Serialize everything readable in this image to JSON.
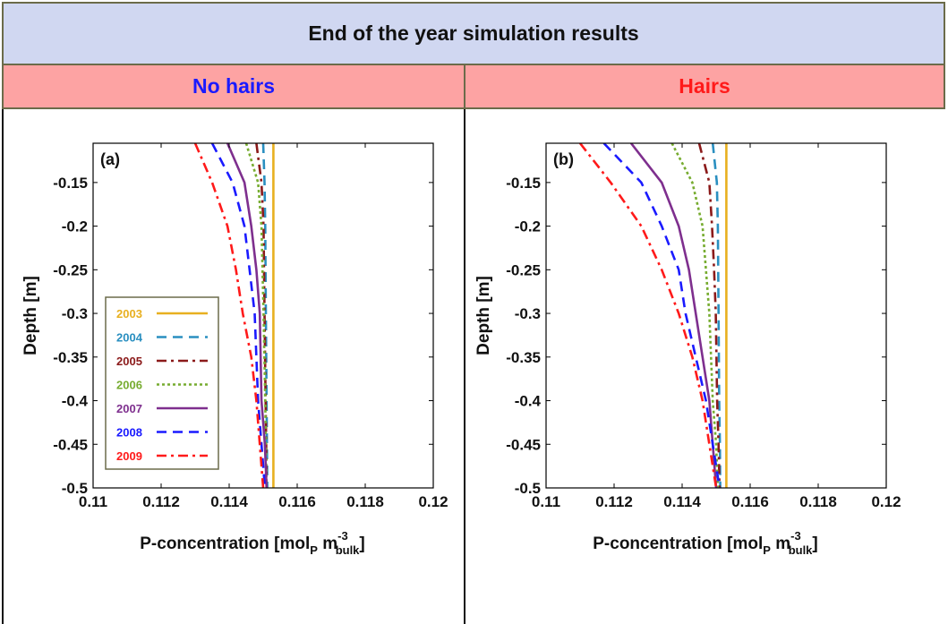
{
  "banner": {
    "title": "End of the year simulation results"
  },
  "headers": {
    "left": "No hairs",
    "right": "Hairs",
    "left_color": "#1a1aff",
    "right_color": "#ff1a1a"
  },
  "legend": {
    "entries": [
      {
        "year": "2003",
        "color": "#e8b020",
        "dash": "solid"
      },
      {
        "year": "2004",
        "color": "#2a8fc0",
        "dash": "dashed"
      },
      {
        "year": "2005",
        "color": "#8b1a1a",
        "dash": "dashdot"
      },
      {
        "year": "2006",
        "color": "#77ac30",
        "dash": "dotted"
      },
      {
        "year": "2007",
        "color": "#7e2f8e",
        "dash": "solid"
      },
      {
        "year": "2008",
        "color": "#1a1aff",
        "dash": "dashed"
      },
      {
        "year": "2009",
        "color": "#ff1a1a",
        "dash": "dashdot"
      }
    ]
  },
  "chart_data": [
    {
      "type": "line",
      "panel_label": "(a)",
      "xlabel": "P-concentration [mol_P m_bulk^-3]",
      "xlabel_parts": {
        "main": "P-concentration [mol",
        "sub1": "P",
        "mid": " m",
        "sup": "-3",
        "sub2": "bulk",
        "end": "]"
      },
      "ylabel": "Depth [m]",
      "xlim": [
        0.11,
        0.12
      ],
      "ylim": [
        -0.5,
        -0.105
      ],
      "x_ticks": [
        "0.11",
        "0.112",
        "0.114",
        "0.116",
        "0.118",
        "0.12"
      ],
      "y_ticks": [
        "-0.15",
        "-0.2",
        "-0.25",
        "-0.3",
        "-0.35",
        "-0.4",
        "-0.45",
        "-0.5"
      ],
      "grid": false,
      "legend_position": "left",
      "series": [
        {
          "name": "2003",
          "x": [
            0.1153,
            0.1153
          ],
          "y": [
            -0.105,
            -0.5
          ]
        },
        {
          "name": "2004",
          "x": [
            0.115,
            0.11504,
            0.11506,
            0.11508,
            0.1151,
            0.11511,
            0.11512
          ],
          "y": [
            -0.105,
            -0.15,
            -0.2,
            -0.3,
            -0.4,
            -0.45,
            -0.5
          ]
        },
        {
          "name": "2005",
          "x": [
            0.1148,
            0.11495,
            0.11501,
            0.11504,
            0.11507,
            0.11509,
            0.1151
          ],
          "y": [
            -0.105,
            -0.15,
            -0.2,
            -0.3,
            -0.4,
            -0.45,
            -0.5
          ]
        },
        {
          "name": "2006",
          "x": [
            0.1145,
            0.11485,
            0.11495,
            0.11501,
            0.11506,
            0.11508,
            0.1151
          ],
          "y": [
            -0.105,
            -0.15,
            -0.2,
            -0.3,
            -0.4,
            -0.45,
            -0.5
          ]
        },
        {
          "name": "2007",
          "x": [
            0.11395,
            0.11445,
            0.11465,
            0.1148,
            0.1149,
            0.11495,
            0.11505,
            0.1151
          ],
          "y": [
            -0.105,
            -0.15,
            -0.2,
            -0.25,
            -0.3,
            -0.4,
            -0.45,
            -0.5
          ]
        },
        {
          "name": "2008",
          "x": [
            0.1135,
            0.1141,
            0.11445,
            0.1146,
            0.11475,
            0.11485,
            0.11495,
            0.11505
          ],
          "y": [
            -0.105,
            -0.15,
            -0.2,
            -0.25,
            -0.3,
            -0.4,
            -0.45,
            -0.5
          ]
        },
        {
          "name": "2009",
          "x": [
            0.113,
            0.1135,
            0.11395,
            0.1142,
            0.1144,
            0.11465,
            0.1148,
            0.1149,
            0.115
          ],
          "y": [
            -0.105,
            -0.15,
            -0.2,
            -0.25,
            -0.3,
            -0.35,
            -0.4,
            -0.45,
            -0.5
          ]
        }
      ]
    },
    {
      "type": "line",
      "panel_label": "(b)",
      "xlabel": "P-concentration [mol_P m_bulk^-3]",
      "xlabel_parts": {
        "main": "P-concentration [mol",
        "sub1": "P",
        "mid": " m",
        "sup": "-3",
        "sub2": "bulk",
        "end": "]"
      },
      "ylabel": "Depth [m]",
      "xlim": [
        0.11,
        0.12
      ],
      "ylim": [
        -0.5,
        -0.105
      ],
      "x_ticks": [
        "0.11",
        "0.112",
        "0.114",
        "0.116",
        "0.118",
        "0.12"
      ],
      "y_ticks": [
        "-0.15",
        "-0.2",
        "-0.25",
        "-0.3",
        "-0.35",
        "-0.4",
        "-0.45",
        "-0.5"
      ],
      "grid": false,
      "series": [
        {
          "name": "2003",
          "x": [
            0.1153,
            0.1153
          ],
          "y": [
            -0.105,
            -0.5
          ]
        },
        {
          "name": "2004",
          "x": [
            0.1149,
            0.11502,
            0.11505,
            0.11507,
            0.11509,
            0.11511,
            0.11512
          ],
          "y": [
            -0.105,
            -0.15,
            -0.2,
            -0.3,
            -0.4,
            -0.45,
            -0.5
          ]
        },
        {
          "name": "2005",
          "x": [
            0.1145,
            0.1148,
            0.11488,
            0.11494,
            0.11499,
            0.11503,
            0.11507,
            0.1151
          ],
          "y": [
            -0.105,
            -0.15,
            -0.2,
            -0.25,
            -0.3,
            -0.4,
            -0.45,
            -0.5
          ]
        },
        {
          "name": "2006",
          "x": [
            0.1137,
            0.1143,
            0.1146,
            0.1147,
            0.1148,
            0.1149,
            0.115,
            0.11505
          ],
          "y": [
            -0.105,
            -0.15,
            -0.2,
            -0.25,
            -0.3,
            -0.4,
            -0.45,
            -0.5
          ]
        },
        {
          "name": "2007",
          "x": [
            0.1125,
            0.1134,
            0.1139,
            0.1142,
            0.1144,
            0.1146,
            0.1148,
            0.1149,
            0.115
          ],
          "y": [
            -0.105,
            -0.15,
            -0.2,
            -0.25,
            -0.3,
            -0.35,
            -0.4,
            -0.45,
            -0.5
          ]
        },
        {
          "name": "2008",
          "x": [
            0.1117,
            0.1128,
            0.1134,
            0.1139,
            0.1141,
            0.1144,
            0.1147,
            0.1149,
            0.1151
          ],
          "y": [
            -0.105,
            -0.15,
            -0.2,
            -0.25,
            -0.3,
            -0.35,
            -0.4,
            -0.45,
            -0.5
          ]
        },
        {
          "name": "2009",
          "x": [
            0.111,
            0.1119,
            0.1128,
            0.1134,
            0.1139,
            0.1143,
            0.1146,
            0.1148,
            0.115
          ],
          "y": [
            -0.105,
            -0.15,
            -0.2,
            -0.25,
            -0.3,
            -0.35,
            -0.4,
            -0.45,
            -0.5
          ]
        }
      ]
    }
  ]
}
